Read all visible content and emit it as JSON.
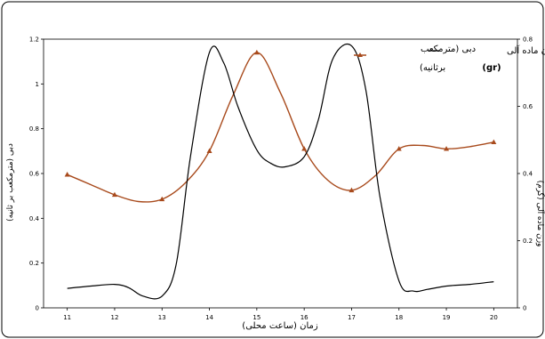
{
  "chart_data": {
    "type": "line",
    "title": "",
    "xlabel": "زمان (ساعت محلی)",
    "ylabel": "دبی (مترمکعب بر ثانیه)",
    "y2label": "وزن ماده آلی (گرم)",
    "x_ticks": [
      11,
      12,
      13,
      14,
      15,
      16,
      17,
      18,
      19,
      20
    ],
    "xlim": [
      10.5,
      20.5
    ],
    "y_ticks": [
      "0",
      "0.2",
      "0.4",
      "0.6",
      "0.8",
      "1",
      "1.2"
    ],
    "ylim": [
      0,
      1.2
    ],
    "y2_ticks": [
      "0",
      "0.2",
      "0.4",
      "0.6",
      "0.8"
    ],
    "y2lim": [
      0,
      0.8
    ],
    "legend": {
      "position": "top-right",
      "entries": [
        {
          "line1": "وزن ماده آلی",
          "line2": "(gr)"
        },
        {
          "line1": "دبی (مترمکعب",
          "line2": "برثانیه)"
        }
      ]
    },
    "series": [
      {
        "name": "دبی (مترمکعب برثانیه)",
        "axis": "left",
        "color": "#a84a1c",
        "marker": "triangle",
        "markers": [
          [
            11,
            0.595
          ],
          [
            12,
            0.505
          ],
          [
            13,
            0.485
          ],
          [
            14,
            0.7
          ],
          [
            15,
            1.14
          ],
          [
            16,
            0.71
          ],
          [
            17,
            0.525
          ],
          [
            18,
            0.71
          ],
          [
            19,
            0.71
          ],
          [
            20,
            0.74
          ]
        ],
        "curve": [
          [
            11,
            0.595
          ],
          [
            11.5,
            0.55
          ],
          [
            12,
            0.505
          ],
          [
            12.5,
            0.475
          ],
          [
            13,
            0.485
          ],
          [
            13.5,
            0.56
          ],
          [
            14,
            0.7
          ],
          [
            14.5,
            0.95
          ],
          [
            15,
            1.14
          ],
          [
            15.5,
            0.96
          ],
          [
            16,
            0.71
          ],
          [
            16.5,
            0.57
          ],
          [
            17,
            0.525
          ],
          [
            17.5,
            0.59
          ],
          [
            18,
            0.71
          ],
          [
            18.5,
            0.725
          ],
          [
            19,
            0.71
          ],
          [
            19.5,
            0.72
          ],
          [
            20,
            0.74
          ]
        ]
      },
      {
        "name": "وزن ماده آلی (gr)",
        "axis": "right",
        "color": "#000000",
        "marker": "none",
        "curve": [
          [
            11,
            0.058
          ],
          [
            11.5,
            0.065
          ],
          [
            12,
            0.07
          ],
          [
            12.3,
            0.06
          ],
          [
            12.6,
            0.035
          ],
          [
            13,
            0.035
          ],
          [
            13.3,
            0.13
          ],
          [
            13.6,
            0.45
          ],
          [
            14,
            0.76
          ],
          [
            14.3,
            0.73
          ],
          [
            14.6,
            0.6
          ],
          [
            15,
            0.47
          ],
          [
            15.3,
            0.43
          ],
          [
            15.6,
            0.42
          ],
          [
            16,
            0.45
          ],
          [
            16.3,
            0.56
          ],
          [
            16.6,
            0.74
          ],
          [
            17,
            0.78
          ],
          [
            17.3,
            0.65
          ],
          [
            17.6,
            0.33
          ],
          [
            18,
            0.08
          ],
          [
            18.3,
            0.05
          ],
          [
            18.6,
            0.055
          ],
          [
            19,
            0.065
          ],
          [
            19.5,
            0.07
          ],
          [
            20,
            0.078
          ]
        ]
      }
    ]
  }
}
